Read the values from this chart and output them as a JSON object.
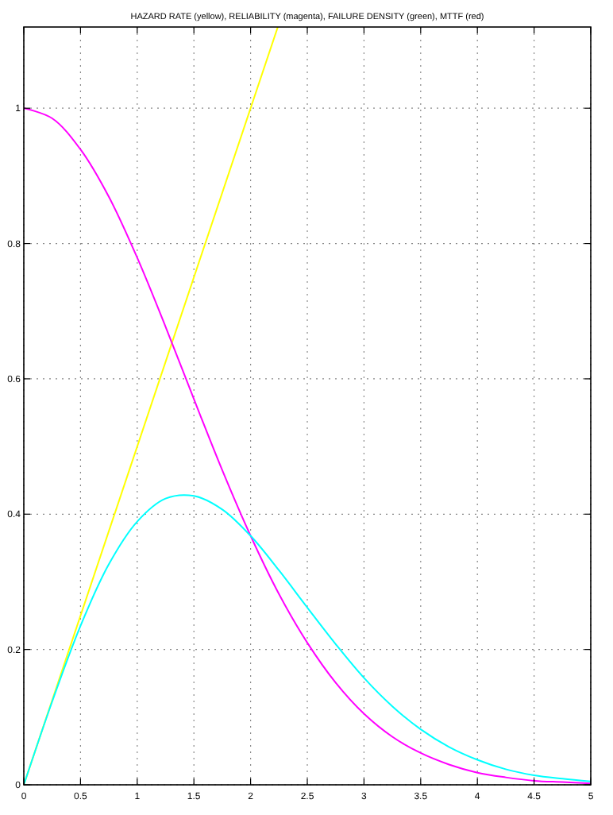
{
  "chart_data": {
    "type": "line",
    "title": "HAZARD RATE (yellow), RELIABILITY (magenta), FAILURE DENSITY (green), MTTF (red)",
    "x": [
      0,
      0.25,
      0.5,
      0.75,
      1,
      1.25,
      1.5,
      1.75,
      2,
      2.25,
      2.5,
      2.75,
      3,
      3.25,
      3.5,
      3.75,
      4,
      4.25,
      4.5,
      4.75,
      5
    ],
    "series": [
      {
        "color": "#ffff00",
        "x": [
          0,
          2.24
        ],
        "values": [
          0,
          1.12
        ]
      },
      {
        "color": "#ff00ff",
        "values": [
          1,
          0.985,
          0.939,
          0.869,
          0.779,
          0.677,
          0.57,
          0.465,
          0.368,
          0.282,
          0.21,
          0.151,
          0.105,
          0.071,
          0.047,
          0.03,
          0.018,
          0.011,
          0.006,
          0.004,
          0.002
        ]
      },
      {
        "color": "#00ffff",
        "values": [
          0,
          0.123,
          0.235,
          0.326,
          0.389,
          0.423,
          0.427,
          0.407,
          0.368,
          0.317,
          0.262,
          0.208,
          0.158,
          0.116,
          0.082,
          0.056,
          0.037,
          0.023,
          0.014,
          0.009,
          0.005
        ]
      }
    ],
    "xlim": [
      0,
      5
    ],
    "xticks": [
      0,
      0.5,
      1,
      1.5,
      2,
      2.5,
      3,
      3.5,
      4,
      4.5,
      5
    ],
    "ylim": [
      0,
      1.12
    ],
    "yticks": [
      0,
      0.2,
      0.4,
      0.6,
      0.8,
      1
    ],
    "grid": true,
    "line_style": "solid",
    "marker": "none"
  }
}
